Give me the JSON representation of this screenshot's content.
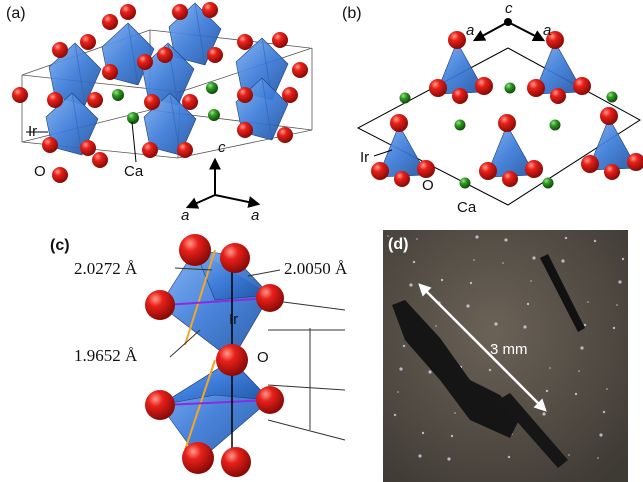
{
  "panel_a": {
    "label": "(a)",
    "atoms": {
      "ir": "Ir",
      "o": "O",
      "ca": "Ca"
    },
    "axes": {
      "c": "c",
      "a1": "a",
      "a2": "a"
    }
  },
  "panel_b": {
    "label": "(b)",
    "atoms": {
      "ir": "Ir",
      "o": "O",
      "ca": "Ca"
    },
    "axes": {
      "c": "c",
      "a1": "a",
      "a2": "a"
    }
  },
  "panel_c": {
    "label": "(c)",
    "bonds": [
      "2.0272 Å",
      "2.0050 Å",
      "1.9652 Å"
    ],
    "atoms": {
      "ir": "Ir",
      "o": "O"
    }
  },
  "panel_d": {
    "label": "(d)",
    "scale": "3 mm"
  }
}
